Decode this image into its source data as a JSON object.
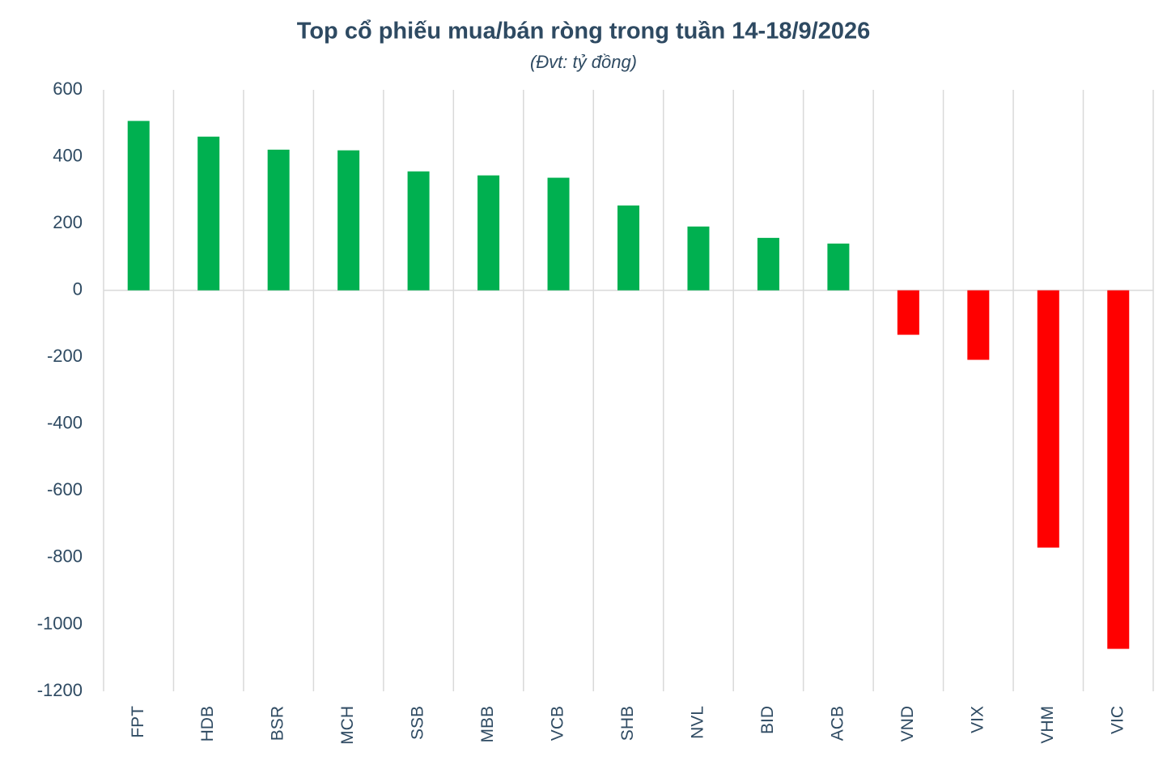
{
  "chart_data": {
    "type": "bar",
    "title": "Top cổ phiếu mua/bán ròng trong tuần 14-18/9/2026",
    "subtitle": "(Đvt: tỷ đồng)",
    "categories": [
      "FPT",
      "HDB",
      "BSR",
      "MCH",
      "SSB",
      "MBB",
      "VCB",
      "SHB",
      "NVL",
      "BID",
      "ACB",
      "VND",
      "VIX",
      "VHM",
      "VIC"
    ],
    "values": [
      507,
      460,
      421,
      419,
      356,
      344,
      337,
      254,
      191,
      157,
      140,
      -133,
      -208,
      -770,
      -1073
    ],
    "colors": [
      "#00b050",
      "#00b050",
      "#00b050",
      "#00b050",
      "#00b050",
      "#00b050",
      "#00b050",
      "#00b050",
      "#00b050",
      "#00b050",
      "#00b050",
      "#ff0000",
      "#ff0000",
      "#ff0000",
      "#ff0000"
    ],
    "ylim": [
      -1200,
      600
    ],
    "yticks": [
      600,
      400,
      200,
      0,
      -200,
      -400,
      -600,
      -800,
      -1000,
      -1200
    ]
  }
}
